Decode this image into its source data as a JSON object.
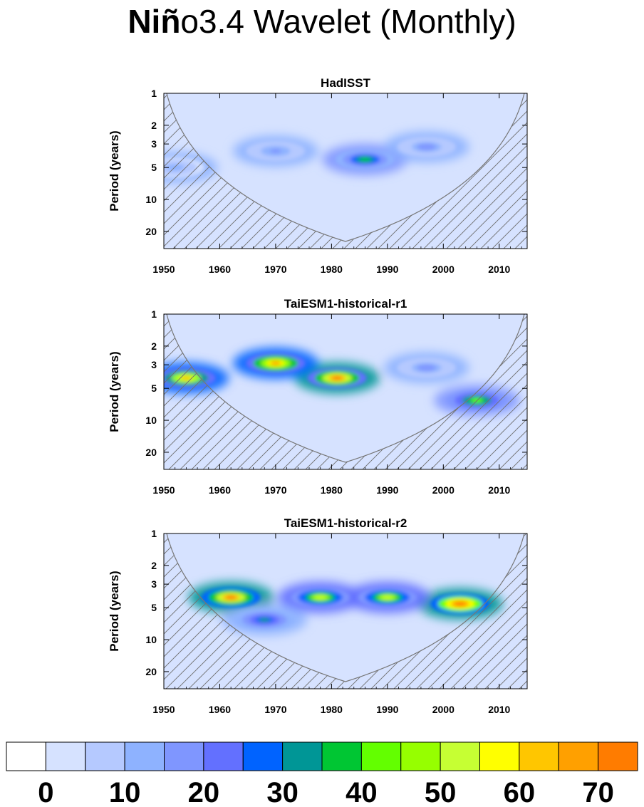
{
  "title_bold": "Niñ",
  "title_rest": "o3.4 Wavelet (Monthly)",
  "chart_data": [
    {
      "type": "heatmap",
      "title": "HadISST",
      "ylabel": "Period (years)",
      "y_scale": "log",
      "ylim": [
        1,
        29
      ],
      "xlim": [
        1950,
        2015
      ],
      "x_ticks": [
        1950,
        1960,
        1970,
        1980,
        1990,
        2000,
        2010
      ],
      "y_ticks": [
        1,
        2,
        3,
        5,
        10,
        20
      ],
      "cone_of_influence": true,
      "peaks": [
        {
          "year": 1986,
          "period": 4.2,
          "power": 36
        },
        {
          "year": 1997,
          "period": 3.2,
          "power": 18
        },
        {
          "year": 1970,
          "period": 3.5,
          "power": 15
        },
        {
          "year": 1952,
          "period": 5.0,
          "power": 12
        }
      ]
    },
    {
      "type": "heatmap",
      "title": "TaiESM1-historical-r1",
      "ylabel": "Period (years)",
      "y_scale": "log",
      "ylim": [
        1,
        29
      ],
      "xlim": [
        1950,
        2015
      ],
      "x_ticks": [
        1950,
        1960,
        1970,
        1980,
        1990,
        2000,
        2010
      ],
      "y_ticks": [
        1,
        2,
        3,
        5,
        10,
        20
      ],
      "cone_of_influence": true,
      "peaks": [
        {
          "year": 1981,
          "period": 4.0,
          "power": 70
        },
        {
          "year": 1970,
          "period": 2.9,
          "power": 66
        },
        {
          "year": 1954,
          "period": 4.0,
          "power": 60
        },
        {
          "year": 2006,
          "period": 6.5,
          "power": 44
        },
        {
          "year": 1997,
          "period": 3.2,
          "power": 18
        }
      ]
    },
    {
      "type": "heatmap",
      "title": "TaiESM1-historical-r2",
      "ylabel": "Period (years)",
      "y_scale": "log",
      "ylim": [
        1,
        29
      ],
      "xlim": [
        1950,
        2015
      ],
      "x_ticks": [
        1950,
        1960,
        1970,
        1980,
        1990,
        2000,
        2010
      ],
      "y_ticks": [
        1,
        2,
        3,
        5,
        10,
        20
      ],
      "cone_of_influence": true,
      "peaks": [
        {
          "year": 1962,
          "period": 4.0,
          "power": 72
        },
        {
          "year": 2003,
          "period": 4.6,
          "power": 74
        },
        {
          "year": 1978,
          "period": 4.0,
          "power": 52
        },
        {
          "year": 1990,
          "period": 4.0,
          "power": 50
        },
        {
          "year": 1968,
          "period": 6.5,
          "power": 32
        }
      ]
    }
  ],
  "colorbar": {
    "labels": [
      "0",
      "10",
      "20",
      "30",
      "40",
      "50",
      "60",
      "70"
    ],
    "colors": [
      "#ffffff",
      "#d6e2ff",
      "#b5c9ff",
      "#8eb2ff",
      "#7f96ff",
      "#6370ff",
      "#0063ff",
      "#009696",
      "#00c633",
      "#63ff00",
      "#96ff00",
      "#c6ff33",
      "#ffff00",
      "#ffc600",
      "#ffa000",
      "#ff7c00",
      "#ff1900"
    ]
  }
}
